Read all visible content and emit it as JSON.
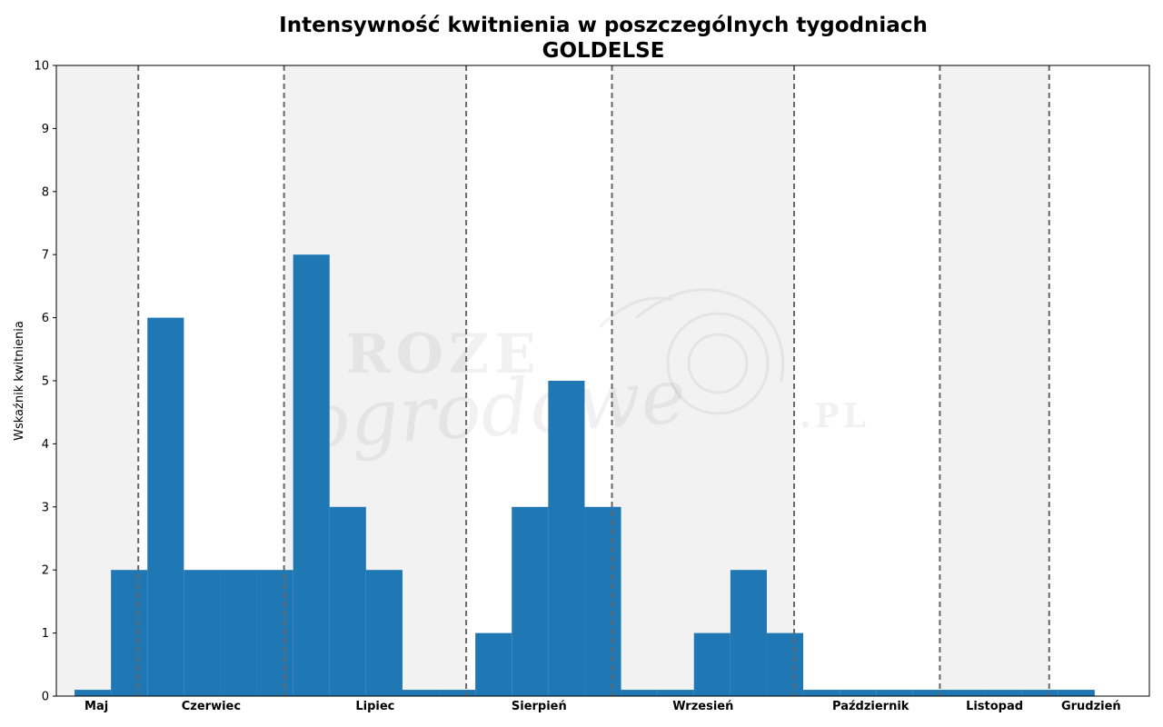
{
  "chart_data": {
    "type": "bar",
    "title": "Intensywność kwitnienia w poszczególnych tygodniach",
    "subtitle": "GOLDELSE",
    "xlabel": "",
    "ylabel": "Wskaźnik kwitnienia",
    "ylim": [
      0,
      10
    ],
    "yticks": [
      "0",
      "1",
      "2",
      "3",
      "4",
      "5",
      "6",
      "7",
      "8",
      "9",
      "10"
    ],
    "grid": false,
    "legend": "none",
    "bar_color": "#1f77b4",
    "week_range": [
      0,
      30
    ],
    "bars": [
      {
        "week": 1,
        "value": 0.1
      },
      {
        "week": 2,
        "value": 2
      },
      {
        "week": 3,
        "value": 6
      },
      {
        "week": 4,
        "value": 2
      },
      {
        "week": 5,
        "value": 2
      },
      {
        "week": 6,
        "value": 2
      },
      {
        "week": 7,
        "value": 7
      },
      {
        "week": 8,
        "value": 3
      },
      {
        "week": 9,
        "value": 2
      },
      {
        "week": 10,
        "value": 0.1
      },
      {
        "week": 11,
        "value": 0.1
      },
      {
        "week": 12,
        "value": 1
      },
      {
        "week": 13,
        "value": 3
      },
      {
        "week": 14,
        "value": 5
      },
      {
        "week": 15,
        "value": 3
      },
      {
        "week": 16,
        "value": 0.1
      },
      {
        "week": 17,
        "value": 0.1
      },
      {
        "week": 18,
        "value": 1
      },
      {
        "week": 19,
        "value": 2
      },
      {
        "week": 20,
        "value": 1
      },
      {
        "week": 21,
        "value": 0.1
      },
      {
        "week": 22,
        "value": 0.1
      },
      {
        "week": 23,
        "value": 0.1
      },
      {
        "week": 24,
        "value": 0.1
      },
      {
        "week": 25,
        "value": 0.1
      },
      {
        "week": 26,
        "value": 0.1
      },
      {
        "week": 27,
        "value": 0.1
      },
      {
        "week": 28,
        "value": 0.1
      }
    ],
    "month_boundaries": [
      2.25,
      6.25,
      11.25,
      15.25,
      20.25,
      24.25,
      27.25
    ],
    "month_bands": [
      {
        "from": 0,
        "to": 2.25,
        "shaded": true
      },
      {
        "from": 2.25,
        "to": 6.25,
        "shaded": false
      },
      {
        "from": 6.25,
        "to": 11.25,
        "shaded": true
      },
      {
        "from": 11.25,
        "to": 15.25,
        "shaded": false
      },
      {
        "from": 15.25,
        "to": 20.25,
        "shaded": true
      },
      {
        "from": 20.25,
        "to": 24.25,
        "shaded": false
      },
      {
        "from": 24.25,
        "to": 27.25,
        "shaded": true
      },
      {
        "from": 27.25,
        "to": 30,
        "shaded": false
      }
    ],
    "months": [
      {
        "label": "Maj",
        "center": 1.1
      },
      {
        "label": "Czerwiec",
        "center": 4.25
      },
      {
        "label": "Lipiec",
        "center": 8.75
      },
      {
        "label": "Sierpień",
        "center": 13.25
      },
      {
        "label": "Wrzesień",
        "center": 17.75
      },
      {
        "label": "Październik",
        "center": 22.35
      },
      {
        "label": "Listopad",
        "center": 25.75
      },
      {
        "label": "Grudzień",
        "center": 28.4
      }
    ],
    "colors": {
      "band": "#f2f2f2",
      "divider": "#666666",
      "axis": "#000000"
    }
  },
  "watermark": {
    "line1": "ROZE",
    "line2": "ogrodowe",
    "suffix": ".PL"
  }
}
